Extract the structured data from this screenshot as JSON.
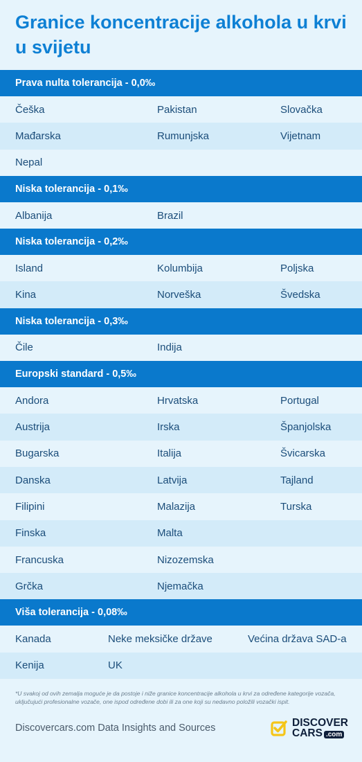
{
  "title": "Granice koncentracije alkohola u krvi u svijetu",
  "sections": [
    {
      "header": "Prava nulta tolerancija - 0,0‰",
      "rows": [
        [
          "Češka",
          "Pakistan",
          "Slovačka"
        ],
        [
          "Mađarska",
          "Rumunjska",
          "Vijetnam"
        ],
        [
          "Nepal",
          "",
          ""
        ]
      ]
    },
    {
      "header": "Niska tolerancija - 0,1‰",
      "rows": [
        [
          "Albanija",
          "Brazil",
          ""
        ]
      ]
    },
    {
      "header": "Niska tolerancija - 0,2‰",
      "rows": [
        [
          "Island",
          "Kolumbija",
          "Poljska"
        ],
        [
          "Kina",
          "Norveška",
          "Švedska"
        ]
      ]
    },
    {
      "header": "Niska tolerancija - 0,3‰",
      "rows": [
        [
          "Čile",
          "Indija",
          ""
        ]
      ]
    },
    {
      "header": "Europski standard - 0,5‰",
      "rows": [
        [
          "Andora",
          "Hrvatska",
          "Portugal"
        ],
        [
          "Austrija",
          "Irska",
          "Španjolska"
        ],
        [
          "Bugarska",
          "Italija",
          "Švicarska"
        ],
        [
          "Danska",
          "Latvija",
          "Tajland"
        ],
        [
          "Filipini",
          "Malazija",
          "Turska"
        ],
        [
          "Finska",
          "Malta",
          ""
        ],
        [
          "Francuska",
          "Nizozemska",
          ""
        ],
        [
          "Grčka",
          "Njemačka",
          ""
        ]
      ]
    },
    {
      "header": "Viša tolerancija - 0,08‰",
      "rows": [
        [
          "Kanada",
          "Neke meksičke države",
          "Većina država SAD-a"
        ],
        [
          "Kenija",
          "UK",
          ""
        ]
      ]
    }
  ],
  "footnote": "*U svakoj od ovih zemalja moguće je da postoje i niže granice koncentracije alkohola u krvi za određene kategorije vozača, uključujući profesionalne vozače, one ispod određene dobi ili za one koji su nedavno položili vozački ispit.",
  "source": "Discovercars.com Data Insights and Sources",
  "logo": {
    "line1": "DISCOVER",
    "line2": "CARS",
    "suffix": ".com",
    "icon": "check-square-icon"
  },
  "colors": {
    "header_bg": "#0a79cc",
    "title": "#0e80d4",
    "page_bg": "#e6f4fc",
    "alt_row": "#d3ebf9",
    "logo_icon": "#f5c518"
  }
}
